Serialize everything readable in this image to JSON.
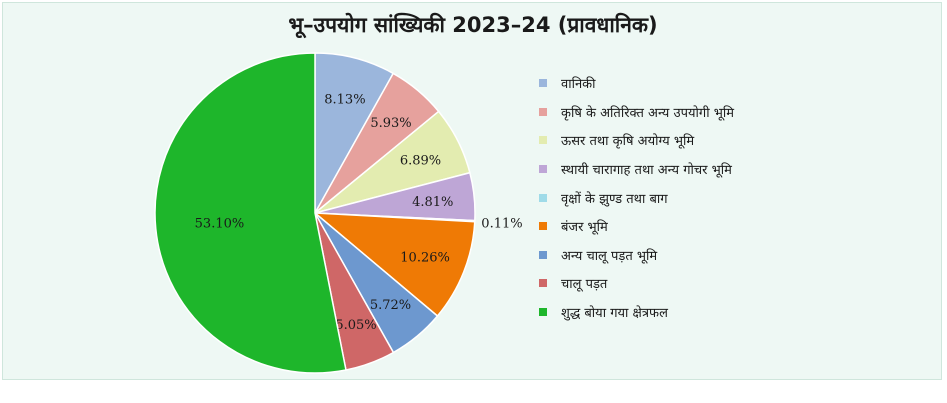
{
  "chart_data": {
    "type": "pie",
    "title": "भू–उपयोग सांख्यिकी 2023–24 (प्रावधानिक)",
    "legend_position": "right",
    "series": [
      {
        "name": "वानिकी",
        "value": 8.13,
        "label": "8.13%",
        "color": "#9bb6dc"
      },
      {
        "name": "कृषि के अतिरिक्त अन्य उपयोगी भूमि",
        "value": 5.93,
        "label": "5.93%",
        "color": "#e6a19d"
      },
      {
        "name": "ऊसर तथा कृषि अयोग्य भूमि",
        "value": 6.89,
        "label": "6.89%",
        "color": "#e3ecb0"
      },
      {
        "name": "स्थायी चारागाह तथा अन्य गोचर भूमि",
        "value": 4.81,
        "label": "4.81%",
        "color": "#bea6d6"
      },
      {
        "name": "वृक्षों के झुण्ड तथा बाग",
        "value": 0.11,
        "label": "0.11%",
        "color": "#9fdbe8"
      },
      {
        "name": "बंजर भूमि",
        "value": 10.26,
        "label": "10.26%",
        "color": "#ef7a05"
      },
      {
        "name": "अन्य चालू पड़त भूमि",
        "value": 5.72,
        "label": "5.72%",
        "color": "#6d98cf"
      },
      {
        "name": "चालू पड़त",
        "value": 5.05,
        "label": "5.05%",
        "color": "#cf6767"
      },
      {
        "name": "शुद्ध बोया गया क्षेत्रफल",
        "value": 53.1,
        "label": "53.10%",
        "color": "#1eb62b"
      }
    ]
  }
}
